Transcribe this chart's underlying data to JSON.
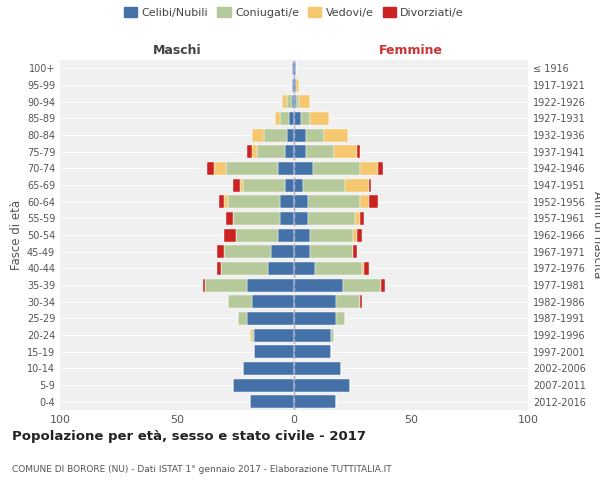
{
  "age_groups": [
    "0-4",
    "5-9",
    "10-14",
    "15-19",
    "20-24",
    "25-29",
    "30-34",
    "35-39",
    "40-44",
    "45-49",
    "50-54",
    "55-59",
    "60-64",
    "65-69",
    "70-74",
    "75-79",
    "80-84",
    "85-89",
    "90-94",
    "95-99",
    "100+"
  ],
  "birth_years": [
    "2012-2016",
    "2007-2011",
    "2002-2006",
    "1997-2001",
    "1992-1996",
    "1987-1991",
    "1982-1986",
    "1977-1981",
    "1972-1976",
    "1967-1971",
    "1962-1966",
    "1957-1961",
    "1952-1956",
    "1947-1951",
    "1942-1946",
    "1937-1941",
    "1932-1936",
    "1927-1931",
    "1922-1926",
    "1917-1921",
    "≤ 1916"
  ],
  "maschi": {
    "celibi": [
      19,
      26,
      22,
      17,
      17,
      20,
      18,
      20,
      11,
      10,
      7,
      6,
      6,
      4,
      7,
      4,
      3,
      2,
      1,
      1,
      1
    ],
    "coniugati": [
      0,
      0,
      0,
      0,
      1,
      4,
      10,
      18,
      20,
      20,
      18,
      20,
      22,
      18,
      22,
      12,
      10,
      4,
      2,
      0,
      0
    ],
    "vedovi": [
      0,
      0,
      0,
      0,
      1,
      0,
      0,
      0,
      0,
      0,
      0,
      0,
      2,
      1,
      5,
      2,
      5,
      2,
      2,
      0,
      0
    ],
    "divorziati": [
      0,
      0,
      0,
      0,
      0,
      0,
      0,
      1,
      2,
      3,
      5,
      3,
      2,
      3,
      3,
      2,
      0,
      0,
      0,
      0,
      0
    ]
  },
  "femmine": {
    "nubili": [
      18,
      24,
      20,
      16,
      16,
      18,
      18,
      21,
      9,
      7,
      7,
      6,
      6,
      4,
      8,
      5,
      5,
      3,
      1,
      1,
      1
    ],
    "coniugate": [
      0,
      0,
      0,
      0,
      1,
      4,
      10,
      16,
      20,
      18,
      18,
      20,
      22,
      18,
      20,
      12,
      8,
      4,
      1,
      0,
      0
    ],
    "vedove": [
      0,
      0,
      0,
      0,
      0,
      0,
      0,
      0,
      1,
      0,
      2,
      2,
      4,
      10,
      8,
      10,
      10,
      8,
      5,
      1,
      0
    ],
    "divorziate": [
      0,
      0,
      0,
      0,
      0,
      0,
      1,
      2,
      2,
      2,
      2,
      2,
      4,
      1,
      2,
      1,
      0,
      0,
      0,
      0,
      0
    ]
  },
  "colors": {
    "celibi": "#4472a8",
    "coniugati": "#b5c99a",
    "vedovi": "#f5c76e",
    "divorziati": "#cc2222"
  },
  "title": "Popolazione per età, sesso e stato civile - 2017",
  "subtitle": "COMUNE DI BORORE (NU) - Dati ISTAT 1° gennaio 2017 - Elaborazione TUTTITALIA.IT",
  "xlabel_left": "Maschi",
  "xlabel_right": "Femmine",
  "ylabel_left": "Fasce di età",
  "ylabel_right": "Anni di nascita",
  "xlim": 100,
  "bg_color": "#f0f0f0",
  "legend_labels": [
    "Celibi/Nubili",
    "Coniugati/e",
    "Vedovi/e",
    "Divorziati/e"
  ]
}
